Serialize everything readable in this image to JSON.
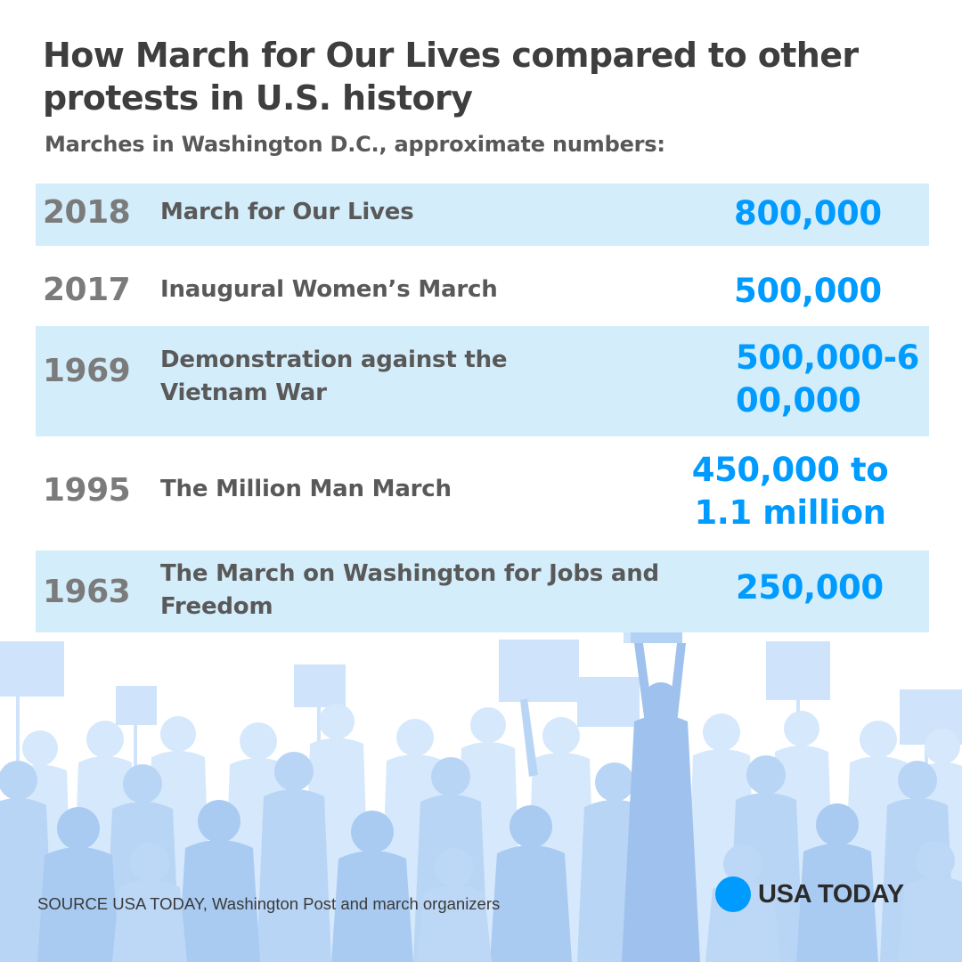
{
  "header": {
    "title": "How March for Our Lives compared to other protests in U.S. history",
    "subtitle": "Marches in Washington D.C., approximate numbers:"
  },
  "marches": [
    {
      "year": "2018",
      "event": "March for Our Lives",
      "count": "800,000"
    },
    {
      "year": "2017",
      "event": "Inaugural Women’s March",
      "count": "500,000"
    },
    {
      "year": "1969",
      "event": "Demonstration against the Vietnam War",
      "count": "500,000-600,000"
    },
    {
      "year": "1995",
      "event": "The Million Man March",
      "count": "450,000 to 1.1 million"
    },
    {
      "year": "1963",
      "event": "The March on Washington for Jobs and Freedom",
      "count": "250,000"
    }
  ],
  "footer": {
    "source": "SOURCE USA TODAY, Washington Post and march organizers",
    "brand": "USA TODAY"
  },
  "colors": {
    "row_shade": "#d4edfa",
    "count_blue": "#009bff",
    "crowd_light": "#cfe4fa",
    "crowd_mid": "#aecdf3",
    "crowd_dark": "#9ec1ee"
  },
  "icons": {
    "brand_mark": "blue-circle-icon",
    "background": "crowd-silhouette-illustration"
  }
}
